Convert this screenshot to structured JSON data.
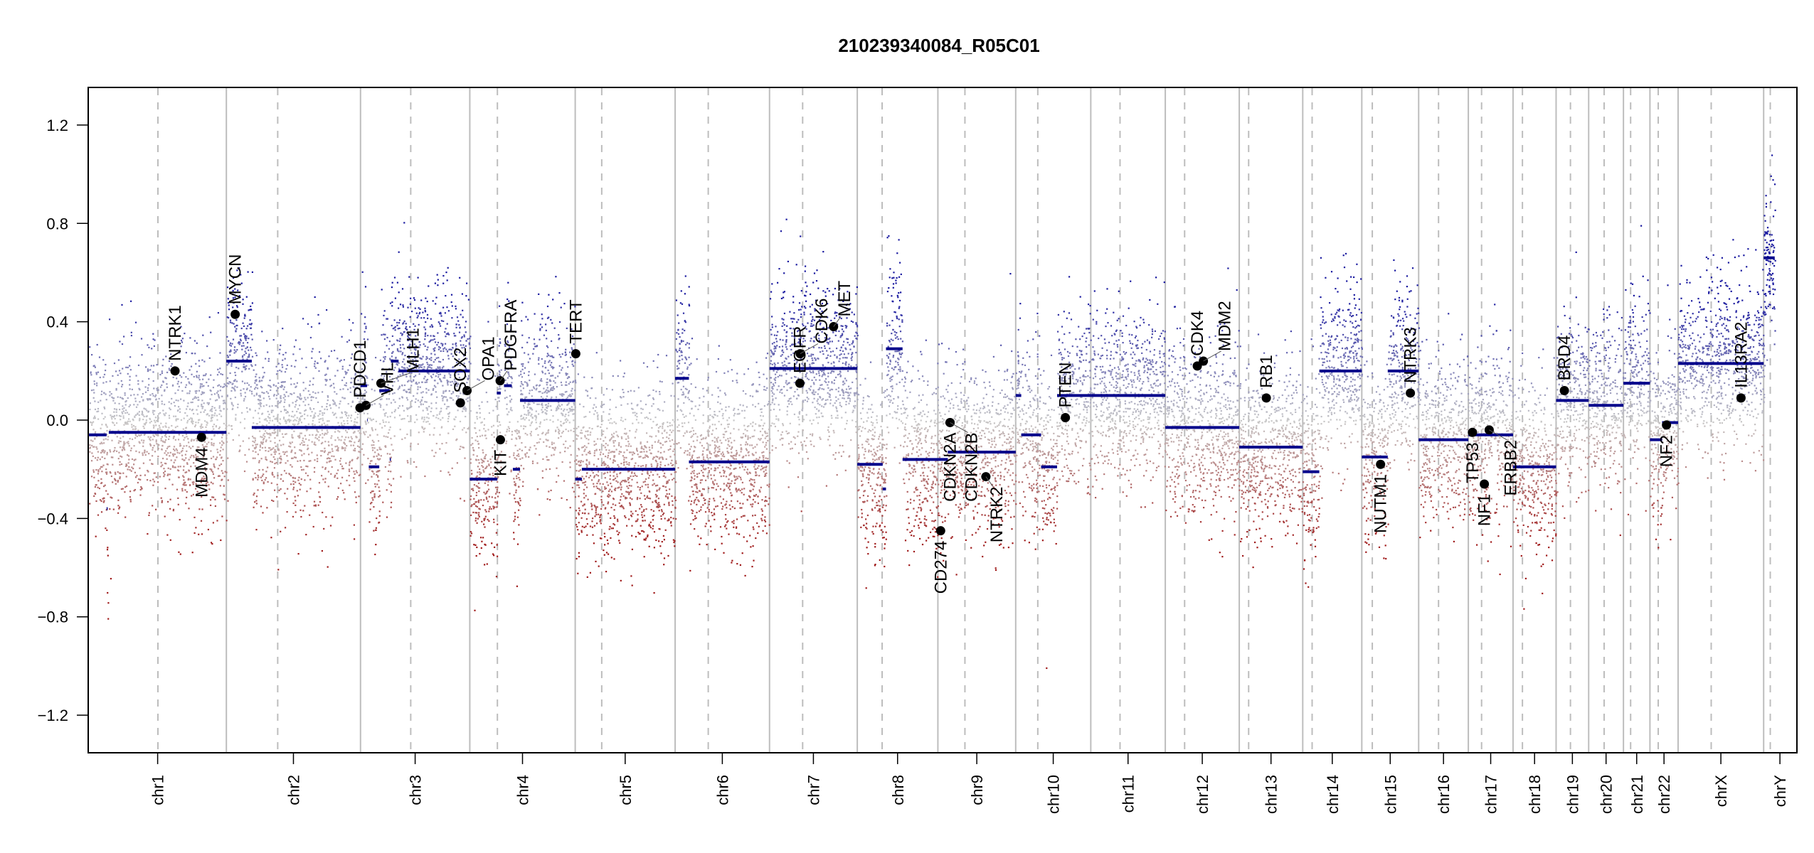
{
  "chart_data": {
    "type": "scatter",
    "title": "210239340084_R05C01",
    "xlabel": "",
    "ylabel": "",
    "ylim": [
      -1.35,
      1.35
    ],
    "yticks": [
      -1.2,
      -0.8,
      -0.4,
      0.0,
      0.4,
      0.8,
      1.2
    ],
    "ytick_labels": [
      "−1.2",
      "−0.8",
      "−0.4",
      "0.0",
      "0.4",
      "0.8",
      "1.2"
    ],
    "x_units": "Mb (cumulative genome position)",
    "colors": {
      "segment": "#00008B",
      "gain_point": "#1a1aa0",
      "neutral_point": "#c8c8c8",
      "loss_point": "#a01a1a",
      "chrom_boundary": "#bdbdbd",
      "centromere": "#bdbdbd",
      "gene_point": "#000000"
    },
    "chromosomes": [
      {
        "name": "chr1",
        "size": 249,
        "centromere": 125
      },
      {
        "name": "chr2",
        "size": 243,
        "centromere": 93
      },
      {
        "name": "chr3",
        "size": 198,
        "centromere": 91
      },
      {
        "name": "chr4",
        "size": 191,
        "centromere": 50
      },
      {
        "name": "chr5",
        "size": 181,
        "centromere": 48
      },
      {
        "name": "chr6",
        "size": 171,
        "centromere": 60
      },
      {
        "name": "chr7",
        "size": 159,
        "centromere": 60
      },
      {
        "name": "chr8",
        "size": 146,
        "centromere": 45
      },
      {
        "name": "chr9",
        "size": 141,
        "centromere": 49
      },
      {
        "name": "chr10",
        "size": 136,
        "centromere": 40
      },
      {
        "name": "chr11",
        "size": 135,
        "centromere": 53
      },
      {
        "name": "chr12",
        "size": 134,
        "centromere": 35
      },
      {
        "name": "chr13",
        "size": 115,
        "centromere": 17
      },
      {
        "name": "chr14",
        "size": 107,
        "centromere": 17
      },
      {
        "name": "chr15",
        "size": 103,
        "centromere": 19
      },
      {
        "name": "chr16",
        "size": 90,
        "centromere": 36
      },
      {
        "name": "chr17",
        "size": 81,
        "centromere": 24
      },
      {
        "name": "chr18",
        "size": 78,
        "centromere": 17
      },
      {
        "name": "chr19",
        "size": 59,
        "centromere": 26
      },
      {
        "name": "chr20",
        "size": 63,
        "centromere": 28
      },
      {
        "name": "chr21",
        "size": 48,
        "centromere": 13
      },
      {
        "name": "chr22",
        "size": 51,
        "centromere": 15
      },
      {
        "name": "chrX",
        "size": 155,
        "centromere": 60
      },
      {
        "name": "chrY",
        "size": 59,
        "centromere": 12
      }
    ],
    "segments": [
      {
        "chr": "chr1",
        "start": 0,
        "end": 32,
        "value": -0.06
      },
      {
        "chr": "chr1",
        "start": 36,
        "end": 249,
        "value": -0.05
      },
      {
        "chr": "chr1",
        "start": 32,
        "end": 34,
        "value": -0.36
      },
      {
        "chr": "chr2",
        "start": 0,
        "end": 46,
        "value": 0.24
      },
      {
        "chr": "chr2",
        "start": 46,
        "end": 243,
        "value": -0.03
      },
      {
        "chr": "chr3",
        "start": 0,
        "end": 12,
        "value": 0.14
      },
      {
        "chr": "chr3",
        "start": 12,
        "end": 13,
        "value": 0.0
      },
      {
        "chr": "chr3",
        "start": 15,
        "end": 34,
        "value": -0.19
      },
      {
        "chr": "chr3",
        "start": 34,
        "end": 53,
        "value": 0.12
      },
      {
        "chr": "chr3",
        "start": 53,
        "end": 55,
        "value": -0.16
      },
      {
        "chr": "chr3",
        "start": 55,
        "end": 69,
        "value": 0.24
      },
      {
        "chr": "chr3",
        "start": 69,
        "end": 84,
        "value": 0.2
      },
      {
        "chr": "chr3",
        "start": 84,
        "end": 97,
        "value": 0.2
      },
      {
        "chr": "chr3",
        "start": 97,
        "end": 198,
        "value": 0.2
      },
      {
        "chr": "chr4",
        "start": 0,
        "end": 50,
        "value": -0.24
      },
      {
        "chr": "chr4",
        "start": 49,
        "end": 56,
        "value": 0.11
      },
      {
        "chr": "chr4",
        "start": 62,
        "end": 76,
        "value": 0.14
      },
      {
        "chr": "chr4",
        "start": 78,
        "end": 91,
        "value": -0.2
      },
      {
        "chr": "chr4",
        "start": 91,
        "end": 191,
        "value": 0.08
      },
      {
        "chr": "chr5",
        "start": 0,
        "end": 12,
        "value": -0.24
      },
      {
        "chr": "chr5",
        "start": 12,
        "end": 181,
        "value": -0.2
      },
      {
        "chr": "chr6",
        "start": 0,
        "end": 25,
        "value": 0.17
      },
      {
        "chr": "chr6",
        "start": 25,
        "end": 171,
        "value": -0.17
      },
      {
        "chr": "chr7",
        "start": 0,
        "end": 159,
        "value": 0.21
      },
      {
        "chr": "chr8",
        "start": 0,
        "end": 46,
        "value": -0.18
      },
      {
        "chr": "chr8",
        "start": 46,
        "end": 52,
        "value": -0.28
      },
      {
        "chr": "chr8",
        "start": 52,
        "end": 82,
        "value": 0.29
      },
      {
        "chr": "chr8",
        "start": 82,
        "end": 146,
        "value": -0.16
      },
      {
        "chr": "chr9",
        "start": 0,
        "end": 18,
        "value": -0.16
      },
      {
        "chr": "chr9",
        "start": 18,
        "end": 38,
        "value": -0.13
      },
      {
        "chr": "chr9",
        "start": 38,
        "end": 141,
        "value": -0.13
      },
      {
        "chr": "chr10",
        "start": 0,
        "end": 10,
        "value": 0.1
      },
      {
        "chr": "chr10",
        "start": 10,
        "end": 46,
        "value": -0.06
      },
      {
        "chr": "chr10",
        "start": 46,
        "end": 75,
        "value": -0.19
      },
      {
        "chr": "chr10",
        "start": 75,
        "end": 136,
        "value": 0.1
      },
      {
        "chr": "chr11",
        "start": 0,
        "end": 135,
        "value": 0.1
      },
      {
        "chr": "chr12",
        "start": 0,
        "end": 134,
        "value": -0.03
      },
      {
        "chr": "chr13",
        "start": 0,
        "end": 115,
        "value": -0.11
      },
      {
        "chr": "chr14",
        "start": 0,
        "end": 30,
        "value": -0.21
      },
      {
        "chr": "chr14",
        "start": 30,
        "end": 107,
        "value": 0.2
      },
      {
        "chr": "chr15",
        "start": 0,
        "end": 47,
        "value": -0.15
      },
      {
        "chr": "chr15",
        "start": 47,
        "end": 103,
        "value": 0.2
      },
      {
        "chr": "chr16",
        "start": 0,
        "end": 90,
        "value": -0.08
      },
      {
        "chr": "chr17",
        "start": 0,
        "end": 81,
        "value": -0.06
      },
      {
        "chr": "chr18",
        "start": 0,
        "end": 78,
        "value": -0.19
      },
      {
        "chr": "chr19",
        "start": 0,
        "end": 59,
        "value": 0.08
      },
      {
        "chr": "chr20",
        "start": 0,
        "end": 63,
        "value": 0.06
      },
      {
        "chr": "chr21",
        "start": 0,
        "end": 48,
        "value": 0.15
      },
      {
        "chr": "chr22",
        "start": 0,
        "end": 22,
        "value": -0.08
      },
      {
        "chr": "chr22",
        "start": 22,
        "end": 51,
        "value": -0.01
      },
      {
        "chr": "chrX",
        "start": 0,
        "end": 155,
        "value": 0.23
      },
      {
        "chr": "chrY",
        "start": 0,
        "end": 20,
        "value": 0.66
      }
    ],
    "genes": [
      {
        "name": "NTRK1",
        "chr": "chr1",
        "pos": 156,
        "value": 0.2,
        "label_side": "above"
      },
      {
        "name": "MDM4",
        "chr": "chr1",
        "pos": 204,
        "value": -0.07,
        "label_side": "below"
      },
      {
        "name": "MYCN",
        "chr": "chr2",
        "pos": 16,
        "value": 0.43,
        "label_side": "above"
      },
      {
        "name": "PDCD1",
        "chr": "chr2",
        "pos": 242,
        "value": 0.05,
        "label_side": "above"
      },
      {
        "name": "VHL",
        "chr": "chr3",
        "pos": 10,
        "value": 0.06,
        "label_side": "above"
      },
      {
        "name": "MLH1",
        "chr": "chr3",
        "pos": 37,
        "value": 0.15,
        "label_side": "above"
      },
      {
        "name": "SOX2",
        "chr": "chr3",
        "pos": 181,
        "value": 0.07,
        "label_side": "above"
      },
      {
        "name": "OPA1",
        "chr": "chr3",
        "pos": 193,
        "value": 0.12,
        "label_side": "above"
      },
      {
        "name": "PDGFRA",
        "chr": "chr4",
        "pos": 55,
        "value": 0.16,
        "label_side": "above"
      },
      {
        "name": "KIT",
        "chr": "chr4",
        "pos": 55.5,
        "value": -0.08,
        "label_side": "below"
      },
      {
        "name": "EGFR",
        "chr": "chr7",
        "pos": 55,
        "value": 0.15,
        "label_side": "above"
      },
      {
        "name": "CDK6",
        "chr": "chr7",
        "pos": 55.5,
        "value": 0.27,
        "label_side": "above"
      },
      {
        "name": "TERT",
        "chr": "chr5",
        "pos": 1,
        "value": 0.27,
        "label_side": "above",
        "note": "overlapping label near EGFR"
      },
      {
        "name": "MET",
        "chr": "chr7",
        "pos": 116,
        "value": 0.38,
        "label_side": "above"
      },
      {
        "name": "CD274",
        "chr": "chr9",
        "pos": 5,
        "value": -0.45,
        "label_side": "below"
      },
      {
        "name": "CDKN2A",
        "chr": "chr9",
        "pos": 22,
        "value": -0.01,
        "label_side": "below"
      },
      {
        "name": "CDKN2B",
        "chr": "chr9",
        "pos": 22.1,
        "value": -0.01,
        "label_side": "below"
      },
      {
        "name": "NTRK2",
        "chr": "chr9",
        "pos": 87,
        "value": -0.23,
        "label_side": "below"
      },
      {
        "name": "PTEN",
        "chr": "chr10",
        "pos": 90,
        "value": 0.01,
        "label_side": "above"
      },
      {
        "name": "CDK4",
        "chr": "chr12",
        "pos": 58,
        "value": 0.22,
        "label_side": "above"
      },
      {
        "name": "MDM2",
        "chr": "chr12",
        "pos": 69,
        "value": 0.24,
        "label_side": "above"
      },
      {
        "name": "RB1",
        "chr": "chr13",
        "pos": 49,
        "value": 0.09,
        "label_side": "above"
      },
      {
        "name": "NUTM1",
        "chr": "chr15",
        "pos": 34,
        "value": -0.18,
        "label_side": "below"
      },
      {
        "name": "NTRK3",
        "chr": "chr15",
        "pos": 88,
        "value": 0.11,
        "label_side": "above"
      },
      {
        "name": "TP53",
        "chr": "chr17",
        "pos": 7.5,
        "value": -0.05,
        "label_side": "below"
      },
      {
        "name": "NF1",
        "chr": "chr17",
        "pos": 29,
        "value": -0.26,
        "label_side": "below"
      },
      {
        "name": "ERBB2",
        "chr": "chr17",
        "pos": 37.8,
        "value": -0.04,
        "label_side": "below"
      },
      {
        "name": "BRD4",
        "chr": "chr19",
        "pos": 15,
        "value": 0.12,
        "label_side": "above"
      },
      {
        "name": "NF2",
        "chr": "chr22",
        "pos": 30,
        "value": -0.02,
        "label_side": "below"
      },
      {
        "name": "IL13RA2",
        "chrom": "chrX",
        "chr": "chrX",
        "pos": 114,
        "value": 0.09,
        "label_side": "above"
      }
    ]
  }
}
